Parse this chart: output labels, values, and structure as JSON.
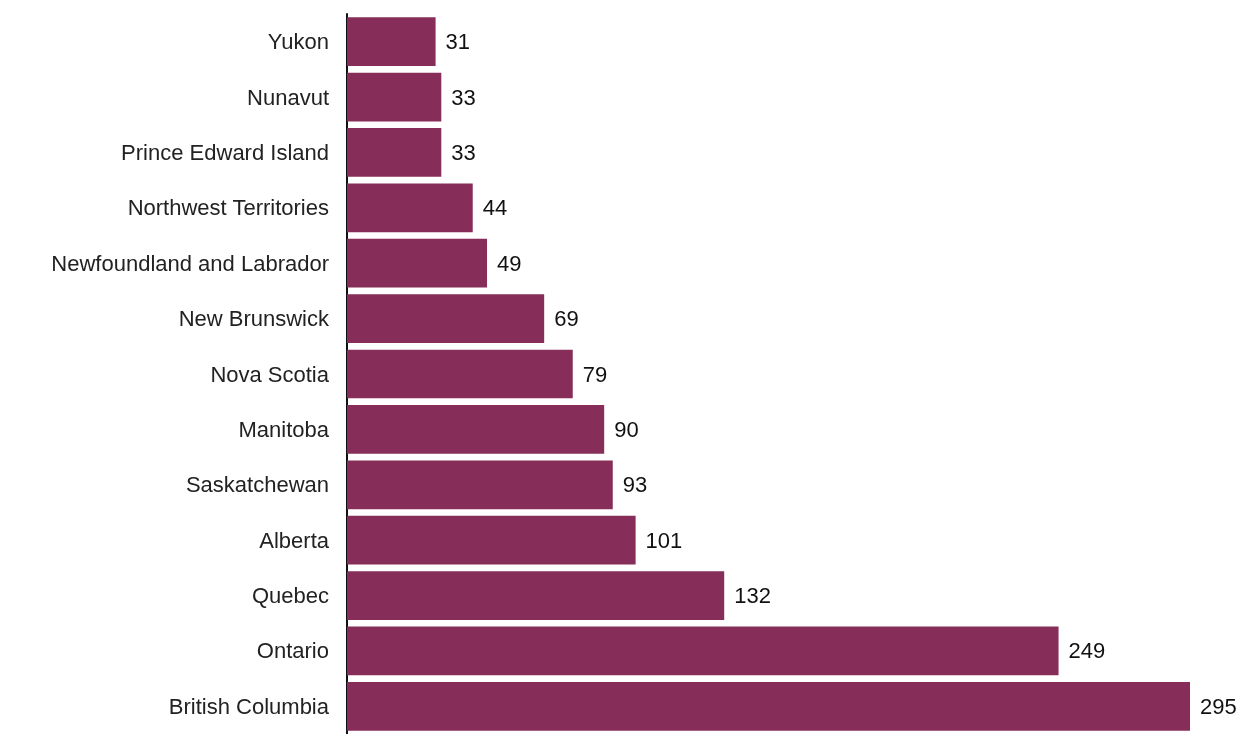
{
  "chart_data": {
    "type": "bar",
    "orientation": "horizontal",
    "categories": [
      "Yukon",
      "Nunavut",
      "Prince Edward Island",
      "Northwest Territories",
      "Newfoundland and Labrador",
      "New Brunswick",
      "Nova Scotia",
      "Manitoba",
      "Saskatchewan",
      "Alberta",
      "Quebec",
      "Ontario",
      "British Columbia"
    ],
    "values": [
      31,
      33,
      33,
      44,
      49,
      69,
      79,
      90,
      93,
      101,
      132,
      249,
      295
    ],
    "color": "#862d59",
    "data_labels": true
  }
}
